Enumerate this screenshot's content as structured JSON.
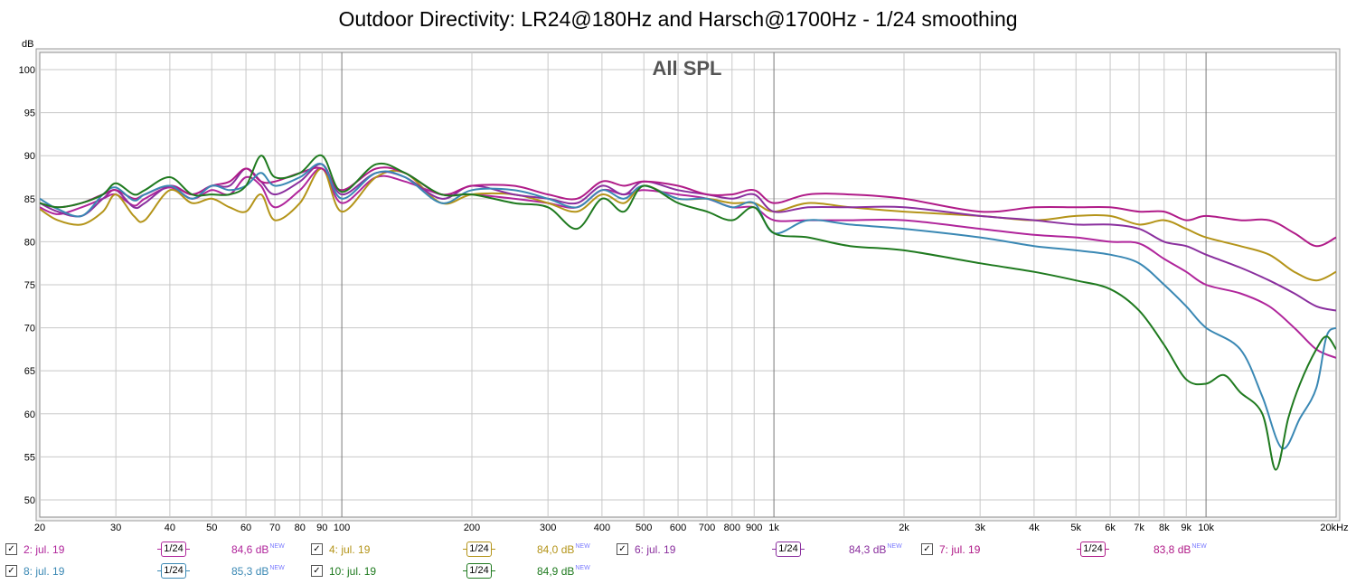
{
  "chart_data": {
    "type": "line",
    "title": "Outdoor Directivity: LR24@180Hz and Harsch@1700Hz - 1/24 smoothing",
    "subtitle": "All SPL",
    "ylabel": "dB",
    "xlabel": "",
    "x_scale": "log",
    "xlim": [
      20,
      20000
    ],
    "ylim": [
      48,
      102
    ],
    "grid": true,
    "legend_position": "bottom",
    "y_ticks": [
      "100",
      "95",
      "90",
      "85",
      "80",
      "75",
      "70",
      "65",
      "60",
      "55",
      "50"
    ],
    "y_tick_values": [
      100,
      95,
      90,
      85,
      80,
      75,
      70,
      65,
      60,
      55,
      50
    ],
    "x_ticks": [
      "20",
      "30",
      "40",
      "50",
      "60",
      "70",
      "80",
      "90",
      "100",
      "200",
      "300",
      "400",
      "500",
      "600",
      "700",
      "800",
      "900",
      "1k",
      "2k",
      "3k",
      "4k",
      "5k",
      "6k",
      "7k",
      "8k",
      "9k",
      "10k",
      "20kHz"
    ],
    "x_tick_values": [
      20,
      30,
      40,
      50,
      60,
      70,
      80,
      90,
      100,
      200,
      300,
      400,
      500,
      600,
      700,
      800,
      900,
      1000,
      2000,
      3000,
      4000,
      5000,
      6000,
      7000,
      8000,
      9000,
      10000,
      20000
    ],
    "series": [
      {
        "name": "2: jul. 19",
        "color": "#b0259b",
        "smoothing": "1/24",
        "level": "84,6 dB",
        "x": [
          20,
          22,
          25,
          28,
          30,
          33,
          35,
          40,
          45,
          50,
          55,
          60,
          65,
          70,
          80,
          90,
          100,
          120,
          140,
          170,
          200,
          250,
          300,
          350,
          400,
          450,
          500,
          600,
          700,
          800,
          900,
          1000,
          1200,
          1500,
          2000,
          3000,
          4000,
          5000,
          6000,
          7000,
          8000,
          9000,
          10000,
          12000,
          14000,
          16000,
          18000,
          20000
        ],
        "y": [
          84.0,
          83.2,
          84.0,
          85.0,
          85.5,
          84.2,
          85.0,
          86.3,
          85.0,
          86.0,
          85.5,
          87.5,
          86.5,
          84.0,
          86.0,
          88.5,
          84.5,
          87.5,
          87.0,
          85.5,
          85.5,
          85.0,
          84.5,
          84.0,
          86.0,
          85.5,
          86.0,
          85.5,
          85.0,
          84.0,
          84.0,
          82.5,
          82.5,
          82.5,
          82.5,
          81.5,
          80.8,
          80.5,
          80.0,
          79.8,
          78.0,
          76.5,
          75.0,
          74.0,
          72.5,
          70.0,
          67.5,
          66.5
        ]
      },
      {
        "name": "4: jul. 19",
        "color": "#b49419",
        "smoothing": "1/24",
        "level": "84,0 dB",
        "x": [
          20,
          22,
          25,
          28,
          30,
          33,
          35,
          40,
          45,
          50,
          55,
          60,
          65,
          70,
          80,
          90,
          100,
          120,
          140,
          170,
          200,
          250,
          300,
          350,
          400,
          450,
          500,
          600,
          700,
          800,
          900,
          1000,
          1200,
          1500,
          2000,
          3000,
          4000,
          5000,
          6000,
          7000,
          8000,
          9000,
          10000,
          12000,
          14000,
          16000,
          18000,
          20000
        ],
        "y": [
          83.8,
          82.5,
          82.0,
          83.5,
          85.5,
          83.0,
          82.5,
          86.0,
          84.5,
          85.0,
          84.0,
          83.5,
          85.5,
          82.5,
          84.5,
          88.5,
          83.5,
          87.5,
          88.0,
          84.5,
          85.5,
          85.5,
          84.5,
          83.5,
          85.5,
          84.5,
          86.5,
          85.0,
          85.0,
          84.5,
          84.5,
          83.5,
          84.5,
          84.0,
          83.5,
          83.0,
          82.5,
          83.0,
          83.0,
          82.0,
          82.5,
          81.5,
          80.5,
          79.5,
          78.5,
          76.5,
          75.5,
          76.5
        ]
      },
      {
        "name": "6: jul. 19",
        "color": "#8a2f9e",
        "smoothing": "1/24",
        "level": "84,3 dB",
        "x": [
          20,
          22,
          25,
          28,
          30,
          33,
          35,
          40,
          45,
          50,
          55,
          60,
          65,
          70,
          80,
          90,
          100,
          120,
          140,
          170,
          200,
          250,
          300,
          350,
          400,
          450,
          500,
          600,
          700,
          800,
          900,
          1000,
          1200,
          1500,
          2000,
          3000,
          4000,
          5000,
          6000,
          7000,
          8000,
          9000,
          10000,
          12000,
          14000,
          16000,
          18000,
          20000
        ],
        "y": [
          84.5,
          83.5,
          83.0,
          85.0,
          86.0,
          84.0,
          84.5,
          86.5,
          85.5,
          86.5,
          86.5,
          88.5,
          87.0,
          85.5,
          87.0,
          89.0,
          85.5,
          88.0,
          87.5,
          85.0,
          86.5,
          85.5,
          85.0,
          84.5,
          86.5,
          85.5,
          87.0,
          86.0,
          85.5,
          85.0,
          85.5,
          83.5,
          84.0,
          84.0,
          84.0,
          83.0,
          82.5,
          82.0,
          82.0,
          81.5,
          80.0,
          79.5,
          78.5,
          77.0,
          75.5,
          74.0,
          72.5,
          72.0
        ]
      },
      {
        "name": "7: jul. 19",
        "color": "#b01b88",
        "smoothing": "1/24",
        "level": "83,8 dB",
        "x": [
          20,
          22,
          25,
          28,
          30,
          33,
          35,
          40,
          45,
          50,
          55,
          60,
          65,
          70,
          80,
          90,
          100,
          120,
          140,
          170,
          200,
          250,
          300,
          350,
          400,
          450,
          500,
          600,
          700,
          800,
          900,
          1000,
          1200,
          1500,
          2000,
          3000,
          4000,
          5000,
          6000,
          7000,
          8000,
          9000,
          10000,
          12000,
          14000,
          16000,
          18000,
          20000
        ],
        "y": [
          84.5,
          84.0,
          84.5,
          85.5,
          86.0,
          85.0,
          85.5,
          86.5,
          85.5,
          86.5,
          87.0,
          88.5,
          87.0,
          87.0,
          88.0,
          88.5,
          86.0,
          88.5,
          88.0,
          85.5,
          86.5,
          86.5,
          85.5,
          85.0,
          87.0,
          86.5,
          87.0,
          86.5,
          85.5,
          85.5,
          86.0,
          84.5,
          85.5,
          85.5,
          85.0,
          83.5,
          84.0,
          84.0,
          84.0,
          83.5,
          83.5,
          82.5,
          83.0,
          82.5,
          82.5,
          81.0,
          79.5,
          80.5
        ]
      },
      {
        "name": "8: jul. 19",
        "color": "#3a88b4",
        "smoothing": "1/24",
        "level": "85,3 dB",
        "x": [
          20,
          22,
          25,
          28,
          30,
          33,
          35,
          40,
          45,
          50,
          55,
          60,
          65,
          70,
          80,
          90,
          100,
          120,
          140,
          170,
          200,
          250,
          300,
          350,
          400,
          450,
          500,
          600,
          700,
          800,
          900,
          1000,
          1200,
          1500,
          2000,
          3000,
          4000,
          5000,
          6000,
          7000,
          8000,
          9000,
          10000,
          12000,
          13500,
          15000,
          16500,
          18000,
          19000,
          20000
        ],
        "y": [
          85.0,
          83.8,
          83.0,
          85.5,
          86.3,
          84.8,
          85.5,
          86.5,
          85.0,
          86.5,
          86.0,
          86.5,
          88.0,
          86.5,
          87.5,
          89.0,
          85.0,
          88.0,
          87.5,
          84.5,
          86.0,
          86.0,
          85.0,
          84.0,
          86.0,
          85.0,
          86.5,
          85.0,
          85.0,
          84.0,
          84.5,
          81.0,
          82.5,
          82.0,
          81.5,
          80.5,
          79.5,
          79.0,
          78.5,
          77.5,
          75.0,
          72.5,
          70.0,
          67.5,
          62.0,
          56.0,
          59.5,
          63.0,
          69.0,
          70.0
        ]
      },
      {
        "name": "10: jul. 19",
        "color": "#1f7a1f",
        "smoothing": "1/24",
        "level": "84,9 dB",
        "x": [
          20,
          22,
          25,
          28,
          30,
          33,
          35,
          40,
          45,
          50,
          55,
          60,
          65,
          70,
          80,
          90,
          100,
          120,
          140,
          170,
          200,
          250,
          300,
          350,
          400,
          450,
          500,
          600,
          700,
          800,
          900,
          1000,
          1200,
          1500,
          2000,
          3000,
          4000,
          5000,
          6000,
          7000,
          8000,
          9000,
          10000,
          11000,
          12000,
          13500,
          14500,
          15500,
          16500,
          18000,
          19000,
          20000
        ],
        "y": [
          84.5,
          84.0,
          84.5,
          85.5,
          86.8,
          85.5,
          86.0,
          87.5,
          85.5,
          85.5,
          85.5,
          86.5,
          90.0,
          87.5,
          88.0,
          90.0,
          85.8,
          89.0,
          88.0,
          85.5,
          85.5,
          84.5,
          84.0,
          81.5,
          85.0,
          83.5,
          86.5,
          84.5,
          83.5,
          82.5,
          84.0,
          81.0,
          80.5,
          79.5,
          79.0,
          77.5,
          76.5,
          75.5,
          74.5,
          72.0,
          68.0,
          64.0,
          63.5,
          64.5,
          62.5,
          60.0,
          53.5,
          59.5,
          63.5,
          67.5,
          69.0,
          67.5
        ]
      }
    ]
  }
}
